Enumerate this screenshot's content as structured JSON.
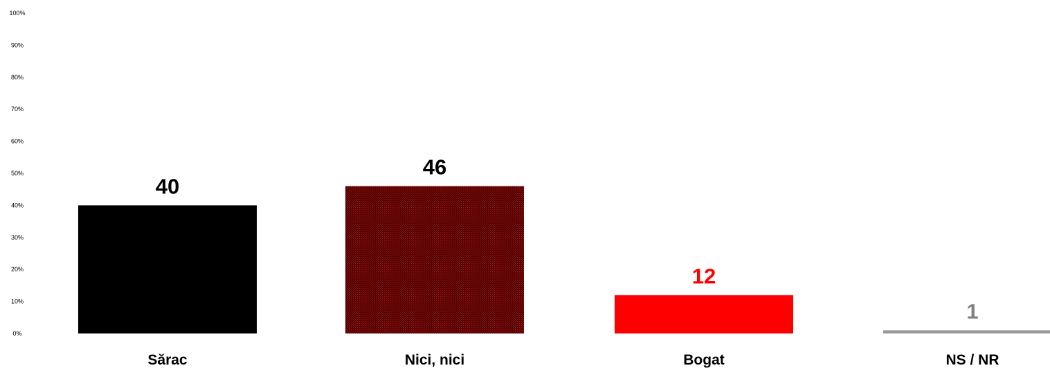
{
  "chart_data": {
    "type": "bar",
    "categories": [
      "Sărac",
      "Nici, nici",
      "Bogat",
      "NS / NR"
    ],
    "values": [
      40,
      46,
      12,
      1
    ],
    "value_labels": [
      "40",
      "46",
      "12",
      "1"
    ],
    "ylim": [
      0,
      100
    ],
    "y_ticks": [
      0,
      10,
      20,
      30,
      40,
      50,
      60,
      70,
      80,
      90,
      100
    ],
    "y_tick_labels": [
      "0%",
      "10%",
      "20%",
      "30%",
      "40%",
      "50%",
      "60%",
      "70%",
      "80%",
      "90%",
      "100%"
    ],
    "grid": false,
    "legend": "none",
    "bar_colors": [
      "#000000",
      "#6b0000",
      "#ff0000",
      "#999999"
    ],
    "label_colors": [
      "#000000",
      "#000000",
      "#ff0000",
      "#808080"
    ]
  }
}
